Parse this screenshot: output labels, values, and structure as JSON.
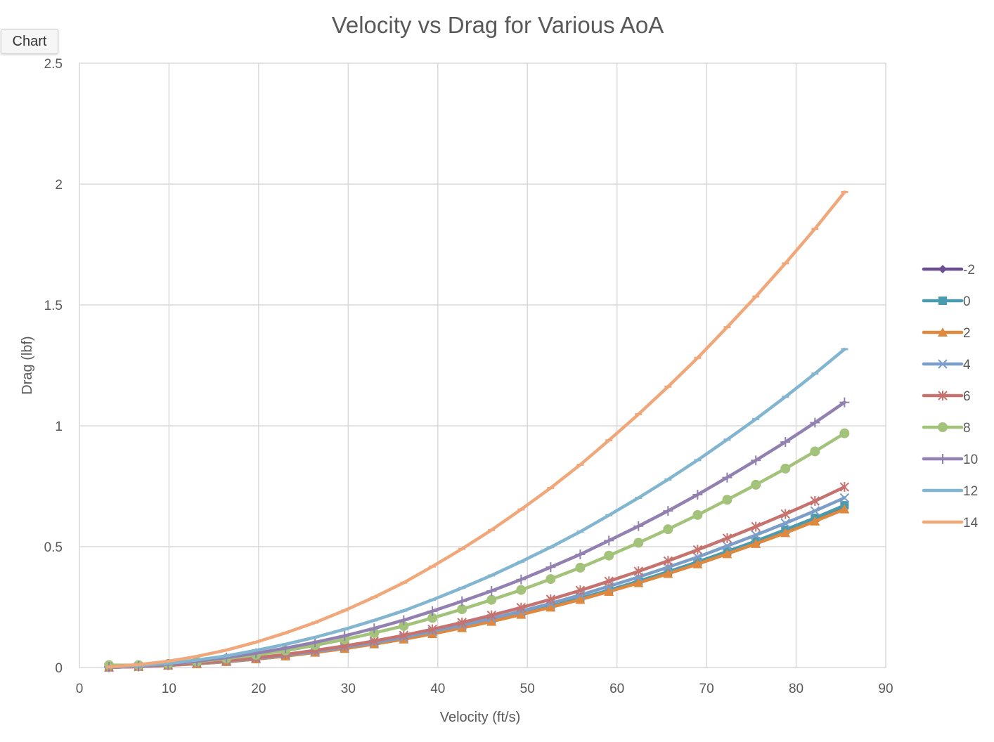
{
  "chart_tab": {
    "label": "Chart"
  },
  "chart_data": {
    "type": "line",
    "title": "Velocity vs Drag for Various AoA",
    "xlabel": "Velocity (ft/s)",
    "ylabel": "Drag (lbf)",
    "xlim": [
      0,
      90
    ],
    "ylim": [
      0,
      2.5
    ],
    "x_ticks": [
      0,
      10,
      20,
      30,
      40,
      50,
      60,
      70,
      80,
      90
    ],
    "y_ticks": [
      0,
      0.5,
      1,
      1.5,
      2,
      2.5
    ],
    "y_tick_labels": [
      "0",
      "0.5",
      "1",
      "1.5",
      "2",
      "2.5"
    ],
    "grid": true,
    "legend_position": "right",
    "x": [
      3.3,
      6.6,
      9.9,
      13.1,
      16.4,
      19.7,
      23.0,
      26.3,
      29.6,
      32.9,
      36.2,
      39.4,
      42.7,
      46.0,
      49.3,
      52.6,
      55.9,
      59.1,
      62.4,
      65.7,
      69.0,
      72.3,
      75.5,
      78.8,
      82.1,
      85.4
    ],
    "series": [
      {
        "name": "-2",
        "color": "#6b4e8f",
        "marker": "diamond",
        "values": [
          0.001,
          0.004,
          0.009,
          0.016,
          0.024,
          0.035,
          0.048,
          0.063,
          0.079,
          0.098,
          0.118,
          0.141,
          0.165,
          0.191,
          0.22,
          0.251,
          0.283,
          0.316,
          0.352,
          0.39,
          0.431,
          0.474,
          0.516,
          0.561,
          0.609,
          0.66
        ]
      },
      {
        "name": "0",
        "color": "#4a9bae",
        "marker": "square",
        "values": [
          0.001,
          0.004,
          0.009,
          0.016,
          0.024,
          0.035,
          0.048,
          0.063,
          0.079,
          0.098,
          0.119,
          0.141,
          0.166,
          0.193,
          0.222,
          0.253,
          0.286,
          0.32,
          0.357,
          0.396,
          0.437,
          0.48,
          0.523,
          0.57,
          0.619,
          0.671
        ]
      },
      {
        "name": "2",
        "color": "#e0893e",
        "marker": "triangle",
        "values": [
          0.001,
          0.004,
          0.009,
          0.015,
          0.024,
          0.035,
          0.047,
          0.062,
          0.078,
          0.097,
          0.117,
          0.139,
          0.164,
          0.19,
          0.219,
          0.249,
          0.281,
          0.314,
          0.35,
          0.388,
          0.428,
          0.47,
          0.512,
          0.557,
          0.605,
          0.655
        ]
      },
      {
        "name": "4",
        "color": "#7b9ec9",
        "marker": "x",
        "values": [
          0.001,
          0.004,
          0.01,
          0.017,
          0.026,
          0.037,
          0.051,
          0.066,
          0.084,
          0.103,
          0.125,
          0.149,
          0.175,
          0.203,
          0.233,
          0.265,
          0.3,
          0.336,
          0.374,
          0.415,
          0.457,
          0.503,
          0.548,
          0.597,
          0.648,
          0.702
        ]
      },
      {
        "name": "6",
        "color": "#c6736f",
        "marker": "star",
        "values": [
          0.001,
          0.004,
          0.01,
          0.018,
          0.028,
          0.04,
          0.054,
          0.071,
          0.089,
          0.11,
          0.133,
          0.158,
          0.186,
          0.216,
          0.248,
          0.282,
          0.319,
          0.357,
          0.398,
          0.441,
          0.487,
          0.535,
          0.583,
          0.635,
          0.689,
          0.747
        ]
      },
      {
        "name": "8",
        "color": "#a3c37a",
        "marker": "circle",
        "values": [
          0.01,
          0.01,
          0.015,
          0.024,
          0.037,
          0.052,
          0.07,
          0.092,
          0.116,
          0.143,
          0.172,
          0.205,
          0.241,
          0.28,
          0.321,
          0.366,
          0.413,
          0.463,
          0.516,
          0.572,
          0.631,
          0.694,
          0.756,
          0.823,
          0.894,
          0.969
        ]
      },
      {
        "name": "10",
        "color": "#9281b0",
        "marker": "plus",
        "values": [
          0.002,
          0.006,
          0.014,
          0.026,
          0.041,
          0.059,
          0.08,
          0.104,
          0.131,
          0.162,
          0.196,
          0.233,
          0.274,
          0.317,
          0.364,
          0.415,
          0.468,
          0.525,
          0.585,
          0.648,
          0.715,
          0.786,
          0.857,
          0.933,
          1.013,
          1.097
        ]
      },
      {
        "name": "12",
        "color": "#82b5cf",
        "marker": "dash",
        "values": [
          0.002,
          0.008,
          0.017,
          0.031,
          0.048,
          0.071,
          0.096,
          0.125,
          0.158,
          0.195,
          0.235,
          0.28,
          0.329,
          0.381,
          0.438,
          0.498,
          0.562,
          0.63,
          0.702,
          0.778,
          0.858,
          0.943,
          1.028,
          1.12,
          1.216,
          1.317
        ]
      },
      {
        "name": "14",
        "color": "#f0a87b",
        "marker": "dash",
        "values": [
          0.003,
          0.012,
          0.026,
          0.046,
          0.072,
          0.105,
          0.143,
          0.186,
          0.236,
          0.291,
          0.351,
          0.418,
          0.491,
          0.569,
          0.654,
          0.743,
          0.839,
          0.94,
          1.048,
          1.162,
          1.281,
          1.408,
          1.535,
          1.672,
          1.815,
          1.967
        ]
      }
    ]
  }
}
